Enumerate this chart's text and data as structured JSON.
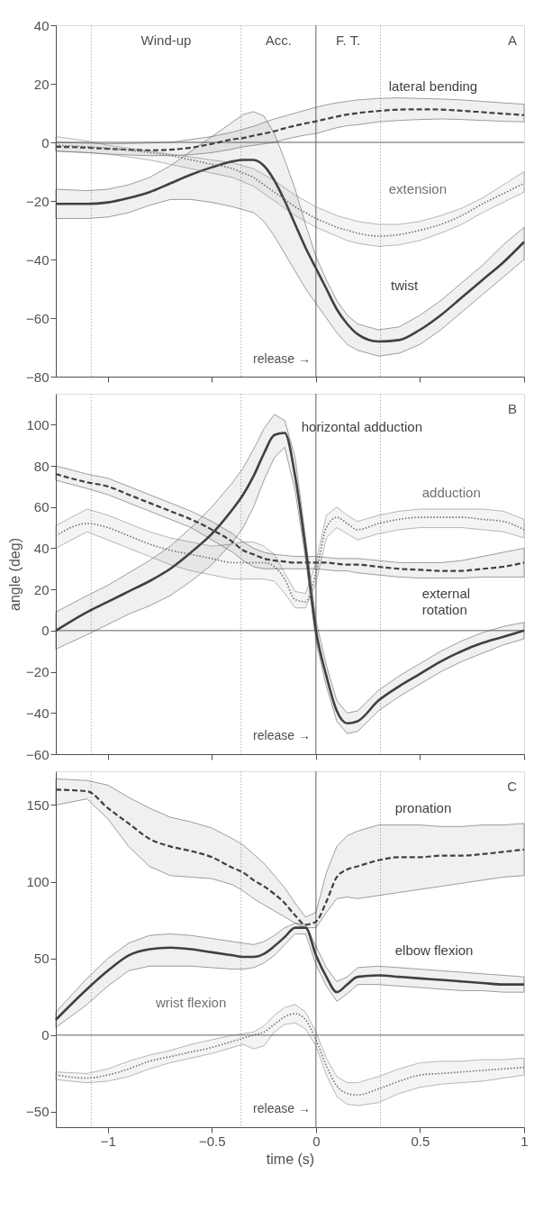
{
  "chart_data": [
    {
      "type": "line",
      "title": "A",
      "xlim": [
        -1.25,
        1
      ],
      "xticks": [
        -1,
        -0.5,
        0,
        0.5,
        1
      ],
      "ylim": [
        -80,
        40
      ],
      "yticks": [
        -80,
        -60,
        -40,
        -20,
        0,
        20,
        40
      ],
      "grid": false,
      "tick_labels": "y",
      "x": [
        -1.25,
        -1.1,
        -1.0,
        -0.9,
        -0.8,
        -0.7,
        -0.6,
        -0.5,
        -0.4,
        -0.35,
        -0.3,
        -0.25,
        -0.2,
        -0.15,
        -0.1,
        -0.05,
        0,
        0.05,
        0.1,
        0.15,
        0.2,
        0.3,
        0.4,
        0.5,
        0.6,
        0.7,
        0.8,
        0.9,
        1.0
      ],
      "series": [
        {
          "name": "twist",
          "color": "#404040",
          "line_style": "solid",
          "values": [
            -21,
            -21,
            -20.5,
            -19,
            -17,
            -14,
            -11,
            -8.5,
            -6.5,
            -6,
            -6,
            -8,
            -13,
            -20,
            -28,
            -36,
            -43,
            -50,
            -57,
            -62,
            -65.5,
            -68,
            -67.5,
            -64,
            -59,
            -53,
            -47,
            -41,
            -34
          ],
          "upper": [
            -16,
            -16.5,
            -16,
            -14.5,
            -12,
            -8,
            -3,
            2,
            7,
            9.5,
            10.5,
            9,
            3,
            -6,
            -16,
            -28,
            -39,
            -47,
            -54,
            -59,
            -62,
            -64,
            -63,
            -59,
            -54,
            -48,
            -42,
            -35,
            -29
          ],
          "lower": [
            -26,
            -26,
            -25.5,
            -24,
            -21.5,
            -19.5,
            -19.5,
            -20.5,
            -22,
            -23,
            -24,
            -27,
            -32,
            -38,
            -44,
            -50,
            -55,
            -60,
            -65,
            -69,
            -71,
            -73,
            -72,
            -69,
            -64,
            -58,
            -52,
            -46,
            -40
          ]
        },
        {
          "name": "lateral bending",
          "color": "#404040",
          "line_style": "dashed",
          "values": [
            -1.5,
            -1.8,
            -2.2,
            -2.5,
            -2.7,
            -2.5,
            -1.8,
            -0.5,
            1,
            1.5,
            2.3,
            3,
            3.8,
            4.8,
            5.7,
            6.5,
            7.2,
            8,
            8.8,
            9.5,
            10,
            10.7,
            11.2,
            11.3,
            11.2,
            10.8,
            10.3,
            9.8,
            9.3
          ],
          "upper": [
            0,
            -0.3,
            -0.5,
            -0.4,
            -0.2,
            0,
            1,
            2,
            3.5,
            4.5,
            5.5,
            6.8,
            8,
            9,
            10,
            11,
            12,
            12.8,
            13.5,
            14,
            14.5,
            15,
            15.2,
            15,
            14.8,
            14.5,
            14,
            13.5,
            13
          ],
          "lower": [
            -3,
            -3.5,
            -4,
            -4.3,
            -4.5,
            -4.5,
            -4.2,
            -3.5,
            -2.3,
            -1.5,
            -1,
            -0.5,
            0,
            1,
            1.8,
            2.5,
            3,
            4,
            5,
            5.7,
            6,
            7,
            7.5,
            7.8,
            8,
            7.8,
            7.5,
            7.2,
            7
          ]
        },
        {
          "name": "extension",
          "color": "#707070",
          "line_style": "dotted",
          "values": [
            -1,
            -1.5,
            -2,
            -2.7,
            -3.5,
            -4.5,
            -6,
            -7.5,
            -9,
            -10.5,
            -12,
            -14.5,
            -17,
            -19.5,
            -22,
            -24,
            -26,
            -27.5,
            -29,
            -30,
            -31,
            -32,
            -31.5,
            -30,
            -28,
            -25,
            -21,
            -17.5,
            -14
          ],
          "upper": [
            2,
            0.5,
            -1,
            -2,
            -3,
            -4,
            -5,
            -6,
            -7,
            -8,
            -9,
            -11,
            -13,
            -15.5,
            -18,
            -20,
            -22,
            -23.5,
            -25,
            -26,
            -27,
            -28,
            -28,
            -27,
            -25,
            -22.5,
            -19,
            -14.5,
            -10
          ],
          "lower": [
            -3,
            -3.5,
            -4,
            -5,
            -6,
            -7.5,
            -9,
            -10.5,
            -12,
            -13.5,
            -15,
            -17.5,
            -20,
            -22.5,
            -25,
            -27,
            -29,
            -30.5,
            -32,
            -33.5,
            -34.5,
            -35.5,
            -35,
            -33.5,
            -31,
            -28,
            -24,
            -20.5,
            -17
          ]
        }
      ],
      "ref_lines": [
        {
          "axis": "x",
          "value": -1.08,
          "line_style": "dotted"
        },
        {
          "axis": "x",
          "value": -0.36,
          "line_style": "dotted"
        },
        {
          "axis": "x",
          "value": 0,
          "line_style": "solid",
          "label": "release →"
        },
        {
          "axis": "x",
          "value": 0.31,
          "line_style": "dotted"
        },
        {
          "axis": "y",
          "value": 0,
          "line_style": "solid"
        }
      ],
      "annotations": [
        "Wind-up",
        "Acc.",
        "F. T."
      ]
    },
    {
      "type": "line",
      "title": "B",
      "ylabel": "angle (deg)",
      "xlim": [
        -1.25,
        1
      ],
      "xticks": [
        -1,
        -0.5,
        0,
        0.5,
        1
      ],
      "ylim": [
        -60,
        115
      ],
      "yticks": [
        -60,
        -40,
        -20,
        0,
        20,
        40,
        60,
        80,
        100
      ],
      "grid": false,
      "tick_labels": "y",
      "x": [
        -1.25,
        -1.1,
        -1.0,
        -0.9,
        -0.8,
        -0.7,
        -0.6,
        -0.5,
        -0.4,
        -0.35,
        -0.3,
        -0.25,
        -0.2,
        -0.15,
        -0.1,
        -0.05,
        0,
        0.05,
        0.1,
        0.15,
        0.2,
        0.3,
        0.4,
        0.5,
        0.6,
        0.7,
        0.8,
        0.9,
        1.0
      ],
      "series": [
        {
          "name": "horizontal adduction",
          "color": "#404040",
          "line_style": "solid",
          "values": [
            0,
            9,
            14,
            19,
            24,
            30,
            38,
            47,
            59,
            66,
            75,
            86,
            95,
            96,
            75,
            40,
            0,
            -22,
            -39,
            -45,
            -44,
            -34,
            -27,
            -21,
            -15,
            -10,
            -6,
            -3,
            0
          ],
          "upper": [
            9,
            17,
            22,
            28,
            34,
            41,
            50,
            60,
            72,
            79,
            88,
            98,
            105,
            102,
            84,
            45,
            5,
            -17,
            -34,
            -40,
            -39,
            -29,
            -22,
            -16,
            -10,
            -5,
            -1,
            2,
            4
          ],
          "lower": [
            -9,
            -2,
            3,
            8,
            12,
            17,
            24,
            32,
            43,
            50,
            60,
            73,
            84,
            89,
            68,
            35,
            -5,
            -27,
            -44,
            -50,
            -49,
            -39,
            -32,
            -26,
            -20,
            -15,
            -11,
            -7,
            -4
          ]
        },
        {
          "name": "adduction",
          "color": "#707070",
          "line_style": "dotted",
          "values": [
            46,
            52,
            50,
            46,
            42,
            39,
            37,
            35,
            33,
            33,
            33,
            33,
            31,
            25,
            15,
            14,
            28,
            50,
            55,
            52,
            49,
            52,
            54,
            55,
            55,
            55,
            54,
            53,
            49
          ],
          "upper": [
            51,
            59,
            56,
            52,
            48,
            45,
            43,
            41,
            42,
            43,
            43,
            41,
            37,
            28,
            19,
            18,
            33,
            56,
            60,
            56,
            53,
            56,
            58,
            59,
            59,
            59,
            59,
            58,
            54
          ],
          "lower": [
            40,
            48,
            44,
            40,
            36,
            32,
            29,
            27,
            25,
            25,
            25,
            25,
            24,
            18,
            11,
            11,
            23,
            45,
            50,
            47,
            44,
            47,
            49,
            50,
            50,
            50,
            49,
            48,
            45
          ]
        },
        {
          "name": "external rotation",
          "color": "#404040",
          "line_style": "dashed",
          "values": [
            76,
            72,
            70,
            66,
            62,
            58,
            54,
            49,
            43,
            39,
            37,
            35,
            34,
            33.5,
            33,
            33,
            33,
            33,
            32.5,
            32,
            32,
            31,
            30,
            29.5,
            29,
            29,
            30,
            31,
            33
          ],
          "upper": [
            80,
            76,
            74,
            70,
            66,
            62,
            58,
            53,
            47,
            43,
            40,
            38,
            37,
            36.5,
            36,
            36,
            36,
            35.5,
            35,
            35,
            35,
            34,
            33,
            33,
            33,
            34,
            36,
            38,
            40
          ],
          "lower": [
            73,
            69,
            66,
            62,
            58,
            54,
            50,
            44,
            38,
            34,
            31,
            30,
            30,
            30,
            30,
            30,
            30,
            29.5,
            29,
            29,
            28,
            27,
            26,
            25.5,
            25.5,
            25.5,
            26,
            26,
            26
          ]
        }
      ],
      "ref_lines": [
        {
          "axis": "x",
          "value": -1.08,
          "line_style": "dotted"
        },
        {
          "axis": "x",
          "value": -0.36,
          "line_style": "dotted"
        },
        {
          "axis": "x",
          "value": 0,
          "line_style": "solid",
          "label": "release →"
        },
        {
          "axis": "x",
          "value": 0.31,
          "line_style": "dotted"
        },
        {
          "axis": "y",
          "value": 0,
          "line_style": "solid"
        }
      ]
    },
    {
      "type": "line",
      "title": "C",
      "xlabel": "time (s)",
      "xlim": [
        -1.25,
        1
      ],
      "xticks": [
        -1,
        -0.5,
        0,
        0.5,
        1
      ],
      "ylim": [
        -60,
        172
      ],
      "yticks": [
        -50,
        0,
        50,
        100,
        150
      ],
      "grid": false,
      "x": [
        -1.25,
        -1.1,
        -1.0,
        -0.9,
        -0.8,
        -0.7,
        -0.6,
        -0.5,
        -0.4,
        -0.35,
        -0.3,
        -0.25,
        -0.2,
        -0.15,
        -0.1,
        -0.05,
        0,
        0.05,
        0.1,
        0.15,
        0.2,
        0.3,
        0.4,
        0.5,
        0.6,
        0.7,
        0.8,
        0.9,
        1.0
      ],
      "series": [
        {
          "name": "elbow flexion",
          "color": "#404040",
          "line_style": "solid",
          "values": [
            10,
            30,
            42,
            52,
            56,
            57,
            56,
            54,
            52,
            51,
            51,
            53,
            58,
            64,
            70,
            70,
            52,
            38,
            28,
            33,
            38,
            39,
            38,
            37,
            36,
            35,
            34,
            33,
            33
          ],
          "upper": [
            15,
            37,
            50,
            60,
            65,
            66,
            65,
            63,
            61,
            60,
            59,
            61,
            65,
            70,
            73,
            72,
            58,
            44,
            35,
            38,
            44,
            45,
            44,
            43,
            42,
            41,
            40,
            39,
            38
          ],
          "lower": [
            5,
            20,
            32,
            42,
            45,
            45,
            45,
            44,
            43,
            43,
            44,
            47,
            52,
            59,
            66,
            66,
            46,
            32,
            22,
            27,
            33,
            33,
            32,
            31,
            30,
            29,
            29,
            28,
            28
          ]
        },
        {
          "name": "pronation",
          "color": "#404040",
          "line_style": "dashed",
          "values": [
            160,
            159,
            148,
            138,
            128,
            123,
            120,
            116,
            109,
            106,
            101,
            97,
            92,
            86,
            78,
            72,
            74,
            87,
            103,
            108,
            110,
            114,
            116,
            116,
            117,
            117,
            118,
            119.5,
            121
          ],
          "upper": [
            167,
            166,
            163,
            155,
            148,
            142,
            139,
            135,
            128,
            124,
            118,
            112,
            104,
            96,
            86,
            77,
            80,
            106,
            123,
            130,
            133,
            137,
            137,
            137,
            136,
            136,
            137,
            137,
            138
          ],
          "lower": [
            150,
            154,
            141,
            123,
            110,
            104,
            103,
            102,
            98,
            94,
            89,
            85,
            81,
            77,
            73,
            70,
            70,
            80,
            89,
            90,
            89,
            91,
            93,
            95,
            97,
            99,
            101,
            103,
            104
          ]
        },
        {
          "name": "wrist flexion",
          "color": "#707070",
          "line_style": "dotted",
          "values": [
            -26,
            -28,
            -26,
            -22,
            -17,
            -14,
            -11,
            -8,
            -4,
            -2,
            0,
            2,
            7,
            12,
            14,
            10,
            -3,
            -20,
            -33,
            -38,
            -39,
            -35,
            -30,
            -26,
            -25,
            -24,
            -23,
            -22,
            -21
          ],
          "upper": [
            -24,
            -25,
            -22,
            -17,
            -13,
            -10,
            -6,
            -3,
            0,
            1,
            2,
            6,
            13,
            18,
            20,
            15,
            2,
            -15,
            -27,
            -31,
            -31,
            -27,
            -22,
            -18,
            -17,
            -17,
            -16,
            -16,
            -15
          ],
          "lower": [
            -29,
            -31,
            -30,
            -27,
            -22,
            -18,
            -15,
            -12,
            -8,
            -6,
            -9,
            -7,
            2,
            7,
            8,
            4,
            -7,
            -26,
            -40,
            -45,
            -46,
            -44,
            -38,
            -34,
            -32,
            -31,
            -30,
            -28,
            -26
          ]
        }
      ],
      "ref_lines": [
        {
          "axis": "x",
          "value": -1.08,
          "line_style": "dotted"
        },
        {
          "axis": "x",
          "value": -0.36,
          "line_style": "dotted"
        },
        {
          "axis": "x",
          "value": 0,
          "line_style": "solid",
          "label": "release →"
        },
        {
          "axis": "x",
          "value": 0.31,
          "line_style": "dotted"
        },
        {
          "axis": "y",
          "value": 0,
          "line_style": "solid"
        }
      ]
    }
  ]
}
